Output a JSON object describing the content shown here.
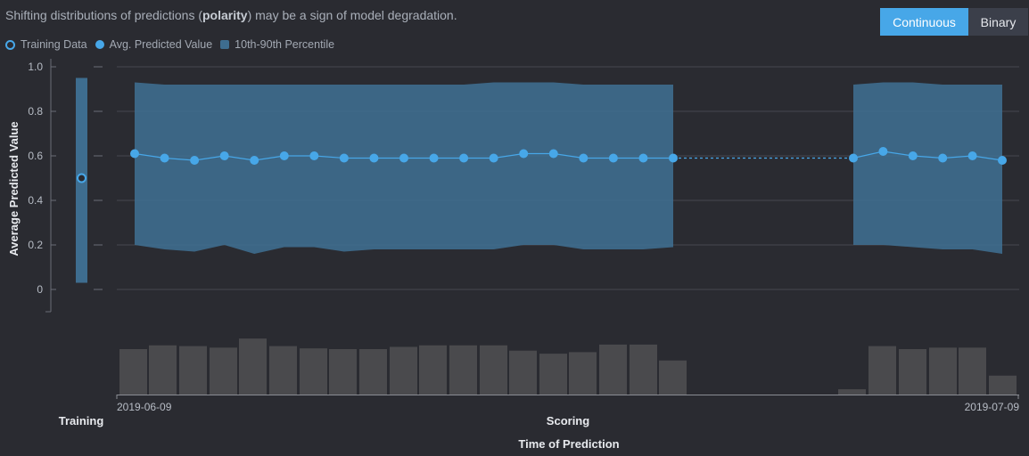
{
  "header": {
    "info_before": "Shifting distributions of predictions (",
    "info_bold": "polarity",
    "info_after": ") may be a sign of model degradation.",
    "continuous_label": "Continuous",
    "binary_label": "Binary"
  },
  "legend": {
    "training": "Training Data",
    "avg": "Avg. Predicted Value",
    "percentile": "10th-90th Percentile"
  },
  "colors": {
    "accent": "#47a7e8",
    "band": "#3e6d8f",
    "histogram": "#4a4a4d",
    "grid": "#45474f"
  },
  "chart_data": {
    "type": "line",
    "ylabel": "Average Predicted Value",
    "xlabel": "Time of Prediction",
    "ylim": [
      0,
      1.0
    ],
    "y_ticks": [
      "0",
      "0.2",
      "0.4",
      "0.6",
      "0.8",
      "1.0"
    ],
    "training": {
      "label": "Training",
      "avg": 0.5,
      "p10": 0.03,
      "p90": 0.95
    },
    "scoring": {
      "label": "Scoring",
      "x_start": "2019-06-09",
      "x_end": "2019-07-09",
      "segments": [
        {
          "avg": [
            0.61,
            0.59,
            0.58,
            0.6,
            0.58,
            0.6,
            0.6,
            0.59,
            0.59,
            0.59,
            0.59,
            0.59,
            0.59,
            0.61,
            0.61,
            0.59,
            0.59,
            0.59,
            0.59
          ],
          "p90": [
            0.93,
            0.92,
            0.92,
            0.92,
            0.92,
            0.92,
            0.92,
            0.92,
            0.92,
            0.92,
            0.92,
            0.92,
            0.93,
            0.93,
            0.93,
            0.92,
            0.92,
            0.92,
            0.92
          ],
          "p10": [
            0.2,
            0.18,
            0.17,
            0.2,
            0.16,
            0.19,
            0.19,
            0.17,
            0.18,
            0.18,
            0.18,
            0.18,
            0.18,
            0.2,
            0.2,
            0.18,
            0.18,
            0.18,
            0.19
          ]
        },
        {
          "avg": [
            0.59,
            0.62,
            0.6,
            0.59,
            0.6,
            0.58
          ],
          "p90": [
            0.92,
            0.93,
            0.93,
            0.92,
            0.92,
            0.92
          ],
          "p10": [
            0.2,
            0.2,
            0.19,
            0.18,
            0.18,
            0.16
          ]
        }
      ],
      "histogram": [
        0.6,
        0.65,
        0.64,
        0.62,
        0.74,
        0.64,
        0.61,
        0.6,
        0.6,
        0.63,
        0.65,
        0.65,
        0.65,
        0.58,
        0.54,
        0.56,
        0.66,
        0.66,
        0.45,
        0.07,
        0.64,
        0.6,
        0.62,
        0.62,
        0.25
      ]
    }
  }
}
